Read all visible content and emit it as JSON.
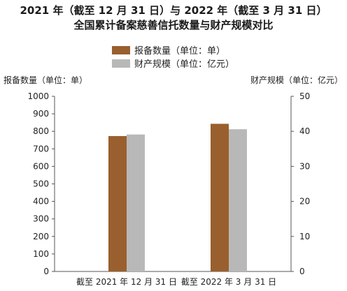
{
  "chart_data": {
    "type": "bar",
    "title": "2021 年（截至 12 月 31 日）与 2022 年（截至 3 月 31 日）",
    "subtitle": "全国累计备案慈善信托数量与财产规模对比",
    "categories": [
      "截至 2021 年 12 月 31 日",
      "截至 2022 年 3 月 31 日"
    ],
    "series": [
      {
        "name": "报备数量（单位：单）",
        "axis": "left",
        "color": "#9a5f2e",
        "values": [
          773,
          843
        ]
      },
      {
        "name": "财产规模（单位：亿元）",
        "axis": "right",
        "color": "#b8b8b8",
        "values": [
          39.1,
          40.6
        ]
      }
    ],
    "ylabel": "报备数量（单位：单）",
    "ylabel_right": "财产规模（单位：亿元）",
    "ylim": [
      0,
      1000
    ],
    "ylim_right": [
      0,
      50
    ],
    "yticks": [
      "0",
      "100",
      "200",
      "300",
      "400",
      "500",
      "600",
      "700",
      "800",
      "900",
      "1000"
    ],
    "yticks_right": [
      "0",
      "10",
      "20",
      "30",
      "40",
      "50"
    ],
    "grid": false,
    "legend_position": "top-center"
  }
}
